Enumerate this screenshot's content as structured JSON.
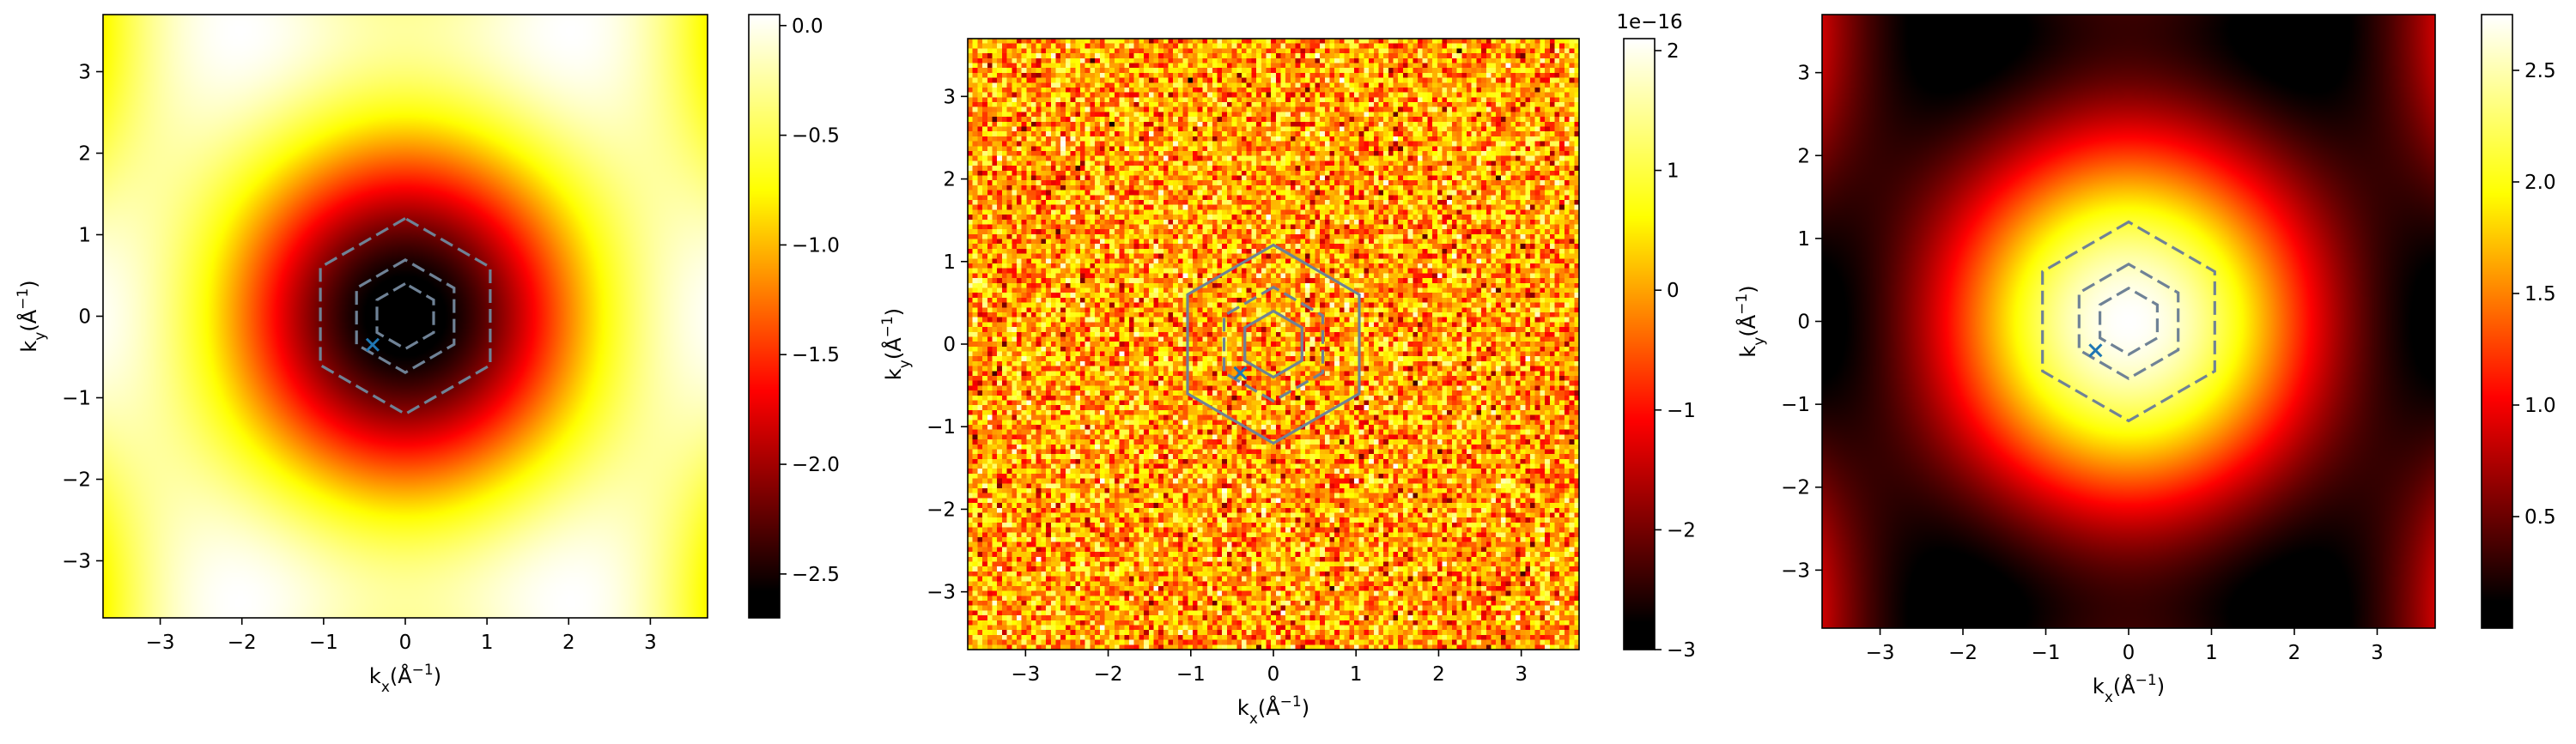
{
  "chart_data": [
    {
      "type": "heatmap",
      "pattern": "smooth",
      "colormap": "hot",
      "xlabel": "k_x(Å^-1)",
      "ylabel": "k_y(Å^-1)",
      "xlim": [
        -3.7,
        3.7
      ],
      "ylim": [
        -3.7,
        3.7
      ],
      "xticks": [
        "−3",
        "−2",
        "−1",
        "0",
        "1",
        "2",
        "3"
      ],
      "yticks": [
        "−3",
        "−2",
        "−1",
        "0",
        "1",
        "2",
        "3"
      ],
      "colorbar": {
        "range": [
          -2.7,
          0.05
        ],
        "ticks": [
          "0.0",
          "−0.5",
          "−1.0",
          "−1.5",
          "−2.0",
          "−2.5"
        ],
        "tick_values": [
          0.0,
          -0.5,
          -1.0,
          -1.5,
          -2.0,
          -2.5
        ],
        "offset_text": ""
      },
      "hexagons": [
        {
          "radius": 1.2,
          "style": "dashed"
        },
        {
          "radius": 0.69,
          "style": "dashed"
        },
        {
          "radius": 0.4,
          "style": "dashed"
        }
      ],
      "marker": {
        "symbol": "x",
        "x": -0.4,
        "y": -0.35
      }
    },
    {
      "type": "heatmap",
      "pattern": "noise",
      "colormap": "hot",
      "xlabel": "k_x(Å^-1)",
      "ylabel": "k_y(Å^-1)",
      "xlim": [
        -3.7,
        3.7
      ],
      "ylim": [
        -3.7,
        3.7
      ],
      "xticks": [
        "−3",
        "−2",
        "−1",
        "0",
        "1",
        "2",
        "3"
      ],
      "yticks": [
        "−3",
        "−2",
        "−1",
        "0",
        "1",
        "2",
        "3"
      ],
      "colorbar": {
        "range": [
          -3.0,
          2.1
        ],
        "ticks": [
          "2",
          "1",
          "0",
          "−1",
          "−2",
          "−3"
        ],
        "tick_values": [
          2,
          1,
          0,
          -1,
          -2,
          -3
        ],
        "offset_text": "1e−16"
      },
      "hexagons": [
        {
          "radius": 1.2,
          "style": "solid"
        },
        {
          "radius": 0.69,
          "style": "dashed"
        },
        {
          "radius": 0.4,
          "style": "solid"
        }
      ],
      "marker": {
        "symbol": "x",
        "x": -0.4,
        "y": -0.35
      }
    },
    {
      "type": "heatmap",
      "pattern": "smooth-inverted",
      "colormap": "hot",
      "xlabel": "k_x(Å^-1)",
      "ylabel": "k_y(Å^-1)",
      "xlim": [
        -3.7,
        3.7
      ],
      "ylim": [
        -3.7,
        3.7
      ],
      "xticks": [
        "−3",
        "−2",
        "−1",
        "0",
        "1",
        "2",
        "3"
      ],
      "yticks": [
        "−3",
        "−2",
        "−1",
        "0",
        "1",
        "2",
        "3"
      ],
      "colorbar": {
        "range": [
          0.0,
          2.75
        ],
        "ticks": [
          "2.5",
          "2.0",
          "1.5",
          "1.0",
          "0.5"
        ],
        "tick_values": [
          2.5,
          2.0,
          1.5,
          1.0,
          0.5
        ],
        "offset_text": ""
      },
      "hexagons": [
        {
          "radius": 1.2,
          "style": "dashed"
        },
        {
          "radius": 0.69,
          "style": "dashed"
        },
        {
          "radius": 0.4,
          "style": "dashed"
        }
      ],
      "marker": {
        "symbol": "x",
        "x": -0.4,
        "y": -0.35
      }
    }
  ]
}
